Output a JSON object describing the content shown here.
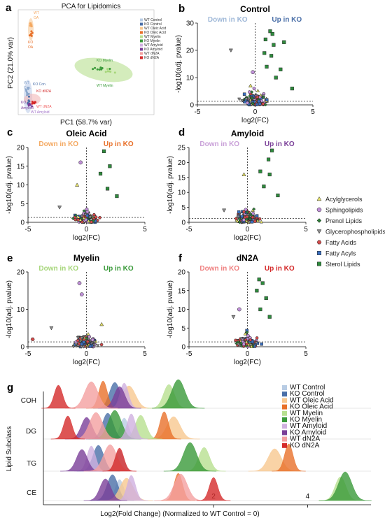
{
  "colors": {
    "Acylglycerols": "#e8e46a",
    "Sphingolipids": "#c090d8",
    "Prenol Lipids": "#2f7d3a",
    "Glycerophospholipids": "#8a8a8a",
    "Fatty Acids": "#d44a4a",
    "Fatty Acyls": "#3a6fc0",
    "Sterol Lipids": "#2e8b3d",
    "down_control": "#9fb8d8",
    "up_control": "#4a6fa8",
    "down_oleic": "#f4a860",
    "up_oleic": "#e8702a",
    "down_amyloid": "#c9a0d8",
    "up_amyloid": "#7a3f98",
    "down_myelin": "#a6d67a",
    "up_myelin": "#3a9a3a",
    "down_dn2a": "#ef7f7f",
    "up_dn2a": "#d42a2a"
  },
  "panel_a": {
    "letter": "a",
    "title": "PCA for Lipidomics",
    "xlabel": "PC1 (58.7% var)",
    "ylabel": "PC2 (21.0% var)",
    "group_labels": [
      {
        "text": "WT",
        "color": "#f4a860"
      },
      {
        "text": "OA",
        "color": "#f4a860"
      },
      {
        "text": "KO",
        "color": "#e8702a"
      },
      {
        "text": "OA",
        "color": "#e8702a"
      },
      {
        "text": "KO Myelin",
        "color": "#3a9a3a"
      },
      {
        "text": "WT Myelin",
        "color": "#3a9a3a"
      },
      {
        "text": "WT",
        "color": "#8aa6cc"
      },
      {
        "text": "Con.",
        "color": "#8aa6cc"
      },
      {
        "text": "KO Con.",
        "color": "#4a6fa8"
      },
      {
        "text": "KO dN2A",
        "color": "#d42a2a"
      },
      {
        "text": "WT dN2A",
        "color": "#ef5f5f"
      },
      {
        "text": "KO",
        "color": "#7a3f98"
      },
      {
        "text": "Amyloid",
        "color": "#7a3f98"
      },
      {
        "text": "WT Amyloid",
        "color": "#a070c8"
      }
    ],
    "legend": [
      {
        "label": "WT Control",
        "color": "#b8cce4"
      },
      {
        "label": "KO Control",
        "color": "#4a6fa8"
      },
      {
        "label": "WT Oleic Acid",
        "color": "#f8c890"
      },
      {
        "label": "KO Oleic Acid",
        "color": "#e8702a"
      },
      {
        "label": "WT Myelin",
        "color": "#b8e090"
      },
      {
        "label": "KO Myelin",
        "color": "#3a9a3a"
      },
      {
        "label": "WT Amyloid",
        "color": "#d0b0e0"
      },
      {
        "label": "KO Amyloid",
        "color": "#7a3f98"
      },
      {
        "label": "WT dN2A",
        "color": "#f4a0a0"
      },
      {
        "label": "KO dN2A",
        "color": "#d42a2a"
      }
    ]
  },
  "volcano_panels": [
    {
      "letter": "b",
      "title": "Control",
      "ymax": 30,
      "yticks": [
        0,
        10,
        20,
        30
      ],
      "down_label": "Down in KO",
      "up_label": "Up in KO",
      "down_key": "down_control",
      "up_key": "up_control"
    },
    {
      "letter": "c",
      "title": "Oleic Acid",
      "ymax": 20,
      "yticks": [
        0,
        5,
        10,
        15,
        20
      ],
      "down_label": "Down in KO",
      "up_label": "Up in KO",
      "down_key": "down_oleic",
      "up_key": "up_oleic"
    },
    {
      "letter": "d",
      "title": "Amyloid",
      "ymax": 25,
      "yticks": [
        0,
        5,
        10,
        15,
        20,
        25
      ],
      "down_label": "Down in KO",
      "up_label": "Up in KO",
      "down_key": "down_amyloid",
      "up_key": "up_amyloid"
    },
    {
      "letter": "e",
      "title": "Myelin",
      "ymax": 20,
      "yticks": [
        0,
        10,
        20
      ],
      "down_label": "Down in KO",
      "up_label": "Up in KO",
      "down_key": "down_myelin",
      "up_key": "up_myelin"
    },
    {
      "letter": "f",
      "title": "dN2A",
      "ymax": 20,
      "yticks": [
        0,
        5,
        10,
        15,
        20
      ],
      "down_label": "Down in KO",
      "up_label": "Up in KO",
      "down_key": "down_dn2a",
      "up_key": "up_dn2a"
    }
  ],
  "volcano_axes": {
    "xlabel": "log2(FC)",
    "ylabel": "-log10(adj. pvalue)",
    "xticks": [
      -5,
      0,
      5
    ]
  },
  "class_legend": [
    {
      "label": "Acylglycerols",
      "shape": "triangle-up"
    },
    {
      "label": "Sphingolipids",
      "shape": "circle"
    },
    {
      "label": "Prenol Lipids",
      "shape": "diamond"
    },
    {
      "label": "Glycerophospholipids",
      "shape": "triangle-down"
    },
    {
      "label": "Fatty Acids",
      "shape": "hexagon"
    },
    {
      "label": "Fatty Acyls",
      "shape": "square"
    },
    {
      "label": "Sterol Lipids",
      "shape": "square"
    }
  ],
  "panel_g": {
    "letter": "g",
    "xlabel": "Log2(Fold Change) (Normalized to WT Control = 0)",
    "ylabel": "Lipid Subclass",
    "rows": [
      "COH",
      "DG",
      "TG",
      "CE"
    ],
    "xticks": [
      0,
      2,
      4
    ],
    "legend": [
      {
        "label": "WT Control",
        "color": "#b8cce4"
      },
      {
        "label": "KO Control",
        "color": "#4a6fa8"
      },
      {
        "label": "WT Oleic Acid",
        "color": "#f8c890"
      },
      {
        "label": "KO Oleic Acid",
        "color": "#e8702a"
      },
      {
        "label": "WT Myelin",
        "color": "#b8e090"
      },
      {
        "label": "KO Myelin",
        "color": "#3a9a3a"
      },
      {
        "label": "WT Amyloid",
        "color": "#d0b0e0"
      },
      {
        "label": "KO Amyloid",
        "color": "#7a3f98"
      },
      {
        "label": "WT dN2A",
        "color": "#f4a0a0"
      },
      {
        "label": "KO dN2A",
        "color": "#d42a2a"
      }
    ]
  },
  "chart_data": [
    {
      "type": "scatter",
      "title": "PCA for Lipidomics",
      "xlabel": "PC1 (58.7% var)",
      "ylabel": "PC2 (21.0% var)",
      "series": [
        {
          "name": "WT Oleic Acid",
          "cluster": "upper-left"
        },
        {
          "name": "KO Oleic Acid",
          "cluster": "upper-left"
        },
        {
          "name": "WT Myelin",
          "cluster": "right"
        },
        {
          "name": "KO Myelin",
          "cluster": "right"
        },
        {
          "name": "WT Control",
          "cluster": "lower-left"
        },
        {
          "name": "KO Control",
          "cluster": "lower-left"
        },
        {
          "name": "WT Amyloid",
          "cluster": "lower-left"
        },
        {
          "name": "KO Amyloid",
          "cluster": "lower-left"
        },
        {
          "name": "WT dN2A",
          "cluster": "lower-left"
        },
        {
          "name": "KO dN2A",
          "cluster": "lower-left"
        }
      ]
    },
    {
      "type": "scatter",
      "title": "Control",
      "xlabel": "log2(FC)",
      "ylabel": "-log10(adj. pvalue)",
      "xlim": [
        -5,
        5
      ],
      "ylim": [
        0,
        30
      ],
      "highlight_points": [
        {
          "class": "Sterol Lipids",
          "x": 1.3,
          "y": 27
        },
        {
          "class": "Sterol Lipids",
          "x": 1.5,
          "y": 26
        },
        {
          "class": "Sterol Lipids",
          "x": 0.9,
          "y": 24
        },
        {
          "class": "Sterol Lipids",
          "x": 1.6,
          "y": 22
        },
        {
          "class": "Sterol Lipids",
          "x": 2.5,
          "y": 23
        },
        {
          "class": "Sterol Lipids",
          "x": 0.8,
          "y": 19
        },
        {
          "class": "Sterol Lipids",
          "x": 1.4,
          "y": 18
        },
        {
          "class": "Sterol Lipids",
          "x": 1.0,
          "y": 14
        },
        {
          "class": "Sterol Lipids",
          "x": 2.2,
          "y": 13
        },
        {
          "class": "Sterol Lipids",
          "x": 1.8,
          "y": 10
        },
        {
          "class": "Sterol Lipids",
          "x": 3.2,
          "y": 6
        },
        {
          "class": "Glycerophospholipids",
          "x": -2.1,
          "y": 20
        },
        {
          "class": "Acylglycerols",
          "x": -0.4,
          "y": 7
        },
        {
          "class": "Sphingolipids",
          "x": -0.2,
          "y": 12
        }
      ]
    },
    {
      "type": "scatter",
      "title": "Oleic Acid",
      "xlabel": "log2(FC)",
      "ylabel": "-log10(adj. pvalue)",
      "xlim": [
        -5,
        5
      ],
      "ylim": [
        0,
        20
      ],
      "highlight_points": [
        {
          "class": "Sterol Lipids",
          "x": 1.5,
          "y": 19
        },
        {
          "class": "Sterol Lipids",
          "x": 2.0,
          "y": 15
        },
        {
          "class": "Sterol Lipids",
          "x": 1.2,
          "y": 13
        },
        {
          "class": "Sterol Lipids",
          "x": 1.8,
          "y": 9
        },
        {
          "class": "Sterol Lipids",
          "x": 2.6,
          "y": 7
        },
        {
          "class": "Sphingolipids",
          "x": -0.5,
          "y": 16
        },
        {
          "class": "Acylglycerols",
          "x": -0.8,
          "y": 10
        },
        {
          "class": "Glycerophospholipids",
          "x": -2.3,
          "y": 4
        }
      ]
    },
    {
      "type": "scatter",
      "title": "Amyloid",
      "xlabel": "log2(FC)",
      "ylabel": "-log10(adj. pvalue)",
      "xlim": [
        -5,
        5
      ],
      "ylim": [
        0,
        25
      ],
      "highlight_points": [
        {
          "class": "Sterol Lipids",
          "x": 2.1,
          "y": 24
        },
        {
          "class": "Sterol Lipids",
          "x": 1.8,
          "y": 21
        },
        {
          "class": "Sterol Lipids",
          "x": 1.1,
          "y": 17
        },
        {
          "class": "Sterol Lipids",
          "x": 1.9,
          "y": 16
        },
        {
          "class": "Sterol Lipids",
          "x": 1.4,
          "y": 12
        },
        {
          "class": "Sterol Lipids",
          "x": 2.6,
          "y": 9
        },
        {
          "class": "Acylglycerols",
          "x": -0.3,
          "y": 16
        },
        {
          "class": "Glycerophospholipids",
          "x": -2.0,
          "y": 4
        }
      ]
    },
    {
      "type": "scatter",
      "title": "Myelin",
      "xlabel": "log2(FC)",
      "ylabel": "-log10(adj. pvalue)",
      "xlim": [
        -5,
        5
      ],
      "ylim": [
        0,
        20
      ],
      "highlight_points": [
        {
          "class": "Sphingolipids",
          "x": -0.6,
          "y": 17
        },
        {
          "class": "Sphingolipids",
          "x": -0.4,
          "y": 14
        },
        {
          "class": "Glycerophospholipids",
          "x": -3.0,
          "y": 5
        },
        {
          "class": "Acylglycerols",
          "x": 1.3,
          "y": 6
        },
        {
          "class": "Fatty Acids",
          "x": -4.6,
          "y": 2
        }
      ]
    },
    {
      "type": "scatter",
      "title": "dN2A",
      "xlabel": "log2(FC)",
      "ylabel": "-log10(adj. pvalue)",
      "xlim": [
        -5,
        5
      ],
      "ylim": [
        0,
        20
      ],
      "highlight_points": [
        {
          "class": "Sterol Lipids",
          "x": 1.0,
          "y": 18
        },
        {
          "class": "Sterol Lipids",
          "x": 1.3,
          "y": 17
        },
        {
          "class": "Sterol Lipids",
          "x": 0.8,
          "y": 15
        },
        {
          "class": "Sterol Lipids",
          "x": 1.6,
          "y": 13
        },
        {
          "class": "Sterol Lipids",
          "x": 1.1,
          "y": 10
        },
        {
          "class": "Sterol Lipids",
          "x": 1.9,
          "y": 8
        },
        {
          "class": "Glycerophospholipids",
          "x": -1.2,
          "y": 8
        },
        {
          "class": "Sphingolipids",
          "x": -0.7,
          "y": 10
        }
      ]
    },
    {
      "type": "area",
      "xlabel": "Log2(Fold Change) (Normalized to WT Control = 0)",
      "ylabel": "Lipid Subclass",
      "categories": [
        "COH",
        "DG",
        "TG",
        "CE"
      ],
      "series": [
        {
          "name": "WT Control",
          "peaks": {
            "COH": 0.05,
            "DG": 0.1,
            "TG": 0.0,
            "CE": 0.0
          }
        },
        {
          "name": "KO Control",
          "peaks": {
            "COH": -0.1,
            "DG": -0.25,
            "TG": -0.45,
            "CE": -0.15
          }
        },
        {
          "name": "WT Oleic Acid",
          "peaks": {
            "COH": 0.2,
            "DG": 1.15,
            "TG": 3.3,
            "CE": 0.15
          }
        },
        {
          "name": "KO Oleic Acid",
          "peaks": {
            "COH": -0.35,
            "DG": 0.95,
            "TG": 3.6,
            "CE": 1.25
          }
        },
        {
          "name": "WT Myelin",
          "peaks": {
            "COH": 1.05,
            "DG": 0.45,
            "TG": 1.8,
            "CE": 4.7
          }
        },
        {
          "name": "KO Myelin",
          "peaks": {
            "COH": 1.25,
            "DG": -0.1,
            "TG": 1.5,
            "CE": 4.8
          }
        },
        {
          "name": "WT Amyloid",
          "peaks": {
            "COH": 0.1,
            "DG": 0.25,
            "TG": -0.6,
            "CE": 0.25
          }
        },
        {
          "name": "KO Amyloid",
          "peaks": {
            "COH": 0.0,
            "DG": -0.7,
            "TG": -0.8,
            "CE": -0.3
          }
        },
        {
          "name": "WT dN2A",
          "peaks": {
            "COH": -0.6,
            "DG": -0.5,
            "TG": -0.2,
            "CE": 1.3
          }
        },
        {
          "name": "KO dN2A",
          "peaks": {
            "COH": -1.3,
            "DG": -1.1,
            "TG": 0.0,
            "CE": 2.0
          }
        }
      ]
    }
  ]
}
